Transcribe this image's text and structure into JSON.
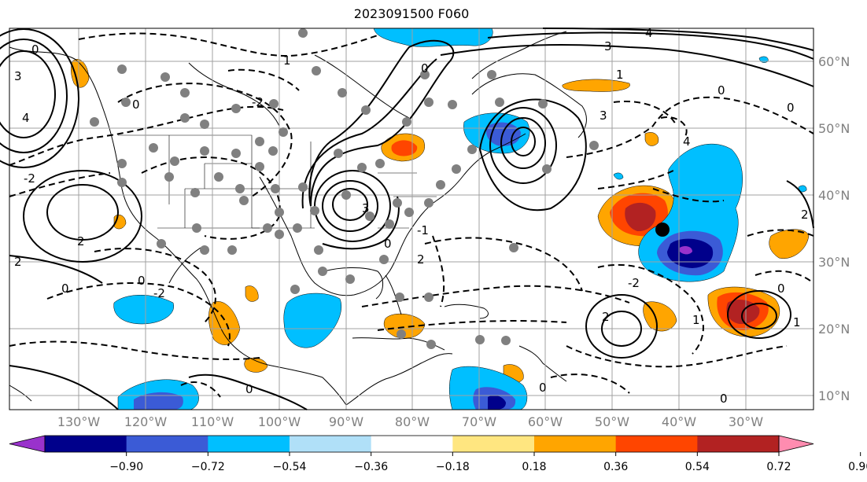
{
  "title": "2023091500 F060",
  "lon_labels": [
    "130°W",
    "120°W",
    "110°W",
    "100°W",
    "90°W",
    "80°W",
    "70°W",
    "60°W",
    "50°W",
    "40°W",
    "30°W"
  ],
  "lat_labels": [
    "60°N",
    "50°N",
    "40°N",
    "30°N",
    "20°N",
    "10°N"
  ],
  "colorbar": {
    "ticks": [
      "−0.90",
      "−0.72",
      "−0.54",
      "−0.36",
      "−0.18",
      "0.18",
      "0.36",
      "0.54",
      "0.72",
      "0.90"
    ],
    "colors": [
      "#9932cc",
      "#00008b",
      "#3b5bd6",
      "#00bfff",
      "#b0e0f8",
      "#ffffff",
      "#ffe680",
      "#ffa500",
      "#ff4500",
      "#b22222",
      "#ff8cb0"
    ]
  },
  "contour_labels": [
    "0",
    "2",
    "4",
    "-2",
    "-1",
    "1",
    "3"
  ],
  "storm_marker": {
    "lon": -43,
    "lat": 35
  }
}
